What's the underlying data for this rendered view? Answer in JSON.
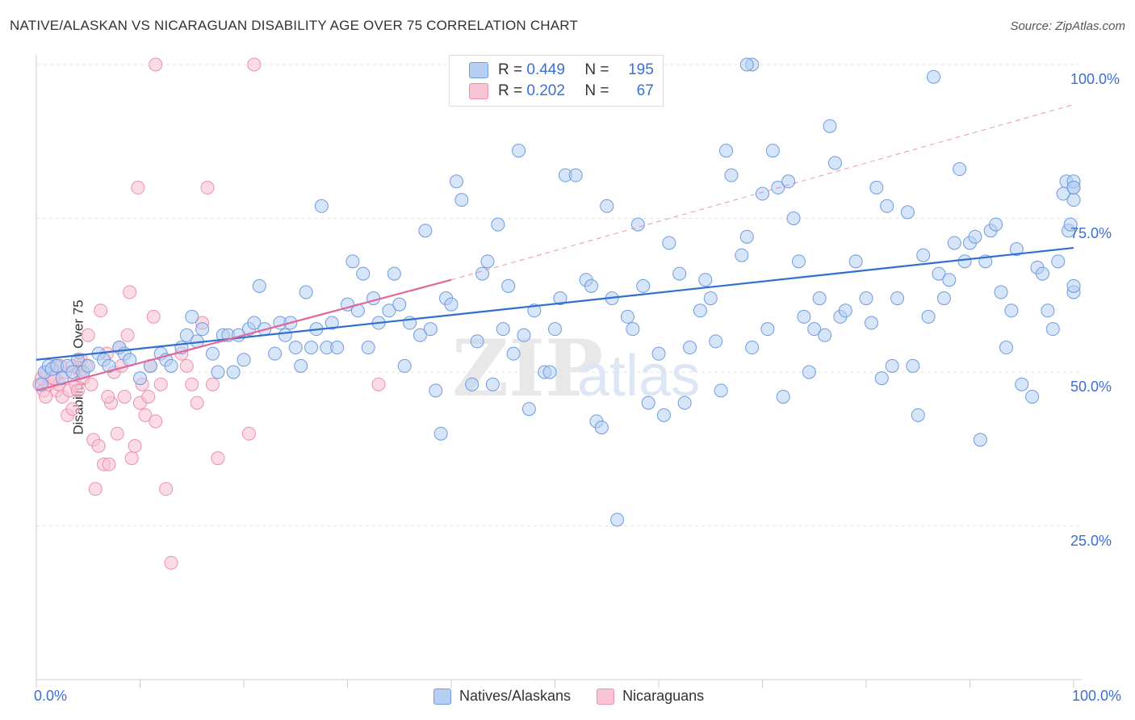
{
  "title": "NATIVE/ALASKAN VS NICARAGUAN DISABILITY AGE OVER 75 CORRELATION CHART",
  "source": "Source: ZipAtlas.com",
  "watermark_zip": "ZIP",
  "watermark_atlas": "atlas",
  "legend": {
    "r_label": "R =",
    "n_label": "N =",
    "series": [
      {
        "r": "0.449",
        "n": "195",
        "fill": "#b7cff2",
        "stroke": "#6f9be0"
      },
      {
        "r": "0.202",
        "n": "67",
        "fill": "#f9c4d4",
        "stroke": "#ee8fb0"
      }
    ]
  },
  "bottom_legend": [
    "Natives/Alaskans",
    "Nicaraguans"
  ],
  "chart_data": {
    "type": "scatter",
    "title": "NATIVE/ALASKAN VS NICARAGUAN DISABILITY AGE OVER 75 CORRELATION CHART",
    "xlabel": "",
    "ylabel": "Disability Age Over 75",
    "xlim": [
      0,
      100
    ],
    "ylim": [
      0,
      100
    ],
    "x_tick_labels": [
      "0.0%",
      "100.0%"
    ],
    "y_tick_labels": [
      "25.0%",
      "50.0%",
      "75.0%",
      "100.0%"
    ],
    "y_ticks": [
      25,
      50,
      75,
      100
    ],
    "grid": true,
    "legend_position": "top-center",
    "colors": {
      "natives": "#6f9be0",
      "natives_fill": "#b7cff2",
      "natives_line": "#2f6fd0",
      "nicaraguans": "#ee8fb0",
      "nicaraguans_fill": "#f9c4d4",
      "nicaraguans_line": "#e0689a"
    },
    "series": [
      {
        "name": "Natives/Alaskans",
        "trend": {
          "x": [
            0,
            100
          ],
          "y": [
            52.0,
            70.2
          ]
        },
        "points": [
          [
            0.5,
            48
          ],
          [
            0.8,
            50
          ],
          [
            1.2,
            51
          ],
          [
            1.5,
            50.5
          ],
          [
            2,
            51
          ],
          [
            2.5,
            49
          ],
          [
            3,
            51
          ],
          [
            3.5,
            50
          ],
          [
            4,
            52
          ],
          [
            4.5,
            50
          ],
          [
            5,
            51
          ],
          [
            6,
            53
          ],
          [
            6.5,
            52
          ],
          [
            7,
            51
          ],
          [
            8,
            54
          ],
          [
            8.5,
            53
          ],
          [
            9,
            52
          ],
          [
            10,
            49
          ],
          [
            11,
            51
          ],
          [
            12,
            53
          ],
          [
            12.5,
            52
          ],
          [
            13,
            51
          ],
          [
            14,
            54
          ],
          [
            14.5,
            56
          ],
          [
            15,
            59
          ],
          [
            15.5,
            55
          ],
          [
            16,
            57
          ],
          [
            17,
            53
          ],
          [
            17.5,
            50
          ],
          [
            18,
            56
          ],
          [
            18.5,
            56
          ],
          [
            19,
            50
          ],
          [
            19.5,
            56
          ],
          [
            20,
            52
          ],
          [
            20.5,
            57
          ],
          [
            21,
            58
          ],
          [
            21.5,
            64
          ],
          [
            22,
            57
          ],
          [
            23,
            53
          ],
          [
            23.5,
            58
          ],
          [
            24,
            56
          ],
          [
            24.5,
            58
          ],
          [
            25,
            54
          ],
          [
            25.5,
            51
          ],
          [
            26,
            63
          ],
          [
            26.5,
            54
          ],
          [
            27,
            57
          ],
          [
            27.5,
            77
          ],
          [
            28,
            54
          ],
          [
            28.5,
            58
          ],
          [
            29,
            54
          ],
          [
            30,
            61
          ],
          [
            30.5,
            68
          ],
          [
            31,
            60
          ],
          [
            31.5,
            66
          ],
          [
            32,
            54
          ],
          [
            32.5,
            62
          ],
          [
            33,
            58
          ],
          [
            34,
            60
          ],
          [
            34.5,
            66
          ],
          [
            35,
            61
          ],
          [
            35.5,
            51
          ],
          [
            36,
            58
          ],
          [
            37,
            56
          ],
          [
            37.5,
            73
          ],
          [
            38,
            57
          ],
          [
            38.5,
            47
          ],
          [
            39,
            40
          ],
          [
            39.5,
            62
          ],
          [
            40,
            61
          ],
          [
            40.5,
            81
          ],
          [
            41,
            78
          ],
          [
            42,
            48
          ],
          [
            42.5,
            55
          ],
          [
            43,
            66
          ],
          [
            43.5,
            68
          ],
          [
            44,
            48
          ],
          [
            44.5,
            74
          ],
          [
            45,
            57
          ],
          [
            45.5,
            64
          ],
          [
            46,
            53
          ],
          [
            46.5,
            86
          ],
          [
            47,
            56
          ],
          [
            47.5,
            44
          ],
          [
            48,
            60
          ],
          [
            49,
            50
          ],
          [
            49.5,
            50
          ],
          [
            50,
            57
          ],
          [
            50.5,
            62
          ],
          [
            51,
            82
          ],
          [
            52,
            82
          ],
          [
            53,
            65
          ],
          [
            53.5,
            64
          ],
          [
            54,
            42
          ],
          [
            54.5,
            41
          ],
          [
            55,
            77
          ],
          [
            55.5,
            62
          ],
          [
            56,
            26
          ],
          [
            57,
            59
          ],
          [
            57.5,
            57
          ],
          [
            58,
            74
          ],
          [
            58.5,
            64
          ],
          [
            59,
            45
          ],
          [
            60,
            53
          ],
          [
            60.5,
            43
          ],
          [
            61,
            71
          ],
          [
            62,
            66
          ],
          [
            62.5,
            45
          ],
          [
            63,
            54
          ],
          [
            64,
            60
          ],
          [
            64.5,
            65
          ],
          [
            65,
            62
          ],
          [
            65.5,
            55
          ],
          [
            66,
            47
          ],
          [
            66.5,
            86
          ],
          [
            67,
            82
          ],
          [
            68,
            69
          ],
          [
            68.5,
            72
          ],
          [
            69,
            54
          ],
          [
            70,
            79
          ],
          [
            70.5,
            57
          ],
          [
            71,
            86
          ],
          [
            71.5,
            80
          ],
          [
            72,
            46
          ],
          [
            72.5,
            81
          ],
          [
            73,
            75
          ],
          [
            73.5,
            68
          ],
          [
            74,
            59
          ],
          [
            74.5,
            50
          ],
          [
            75,
            57
          ],
          [
            75.5,
            62
          ],
          [
            76,
            56
          ],
          [
            76.5,
            90
          ],
          [
            77,
            84
          ],
          [
            77.5,
            59
          ],
          [
            78,
            60
          ],
          [
            79,
            68
          ],
          [
            80,
            62
          ],
          [
            80.5,
            58
          ],
          [
            81,
            80
          ],
          [
            81.5,
            49
          ],
          [
            82,
            77
          ],
          [
            82.5,
            51
          ],
          [
            83,
            62
          ],
          [
            84,
            76
          ],
          [
            84.5,
            51
          ],
          [
            85,
            43
          ],
          [
            85.5,
            69
          ],
          [
            86,
            59
          ],
          [
            86.5,
            98
          ],
          [
            87,
            66
          ],
          [
            87.5,
            62
          ],
          [
            88,
            65
          ],
          [
            88.5,
            71
          ],
          [
            89,
            83
          ],
          [
            89.5,
            68
          ],
          [
            90,
            71
          ],
          [
            90.5,
            72
          ],
          [
            91,
            39
          ],
          [
            91.5,
            68
          ],
          [
            92,
            73
          ],
          [
            92.5,
            74
          ],
          [
            93,
            63
          ],
          [
            93.5,
            54
          ],
          [
            94,
            60
          ],
          [
            94.5,
            70
          ],
          [
            95,
            48
          ],
          [
            96,
            46
          ],
          [
            96.5,
            67
          ],
          [
            97,
            66
          ],
          [
            97.5,
            60
          ],
          [
            98,
            57
          ],
          [
            98.5,
            68
          ],
          [
            99,
            79
          ],
          [
            99.3,
            81
          ],
          [
            99.5,
            73
          ],
          [
            99.7,
            74
          ],
          [
            100,
            80
          ],
          [
            100,
            81
          ],
          [
            100,
            78
          ],
          [
            100,
            63
          ],
          [
            100,
            64
          ],
          [
            100,
            80
          ],
          [
            69,
            100
          ],
          [
            68.5,
            100
          ]
        ]
      },
      {
        "name": "Nicaraguans",
        "trend": {
          "x": [
            0,
            40
          ],
          "y": [
            47.0,
            65.0
          ]
        },
        "trend_dashed": {
          "x": [
            40,
            100
          ],
          "y": [
            65.0,
            93.5
          ]
        },
        "points": [
          [
            0.3,
            48
          ],
          [
            0.5,
            49
          ],
          [
            0.7,
            47
          ],
          [
            1,
            50
          ],
          [
            1.2,
            48
          ],
          [
            1.5,
            49
          ],
          [
            1.8,
            51
          ],
          [
            2,
            47
          ],
          [
            2.2,
            48
          ],
          [
            2.5,
            46
          ],
          [
            2.8,
            50
          ],
          [
            3,
            43
          ],
          [
            3.2,
            47
          ],
          [
            3.5,
            51
          ],
          [
            3.8,
            48
          ],
          [
            4,
            47
          ],
          [
            4.3,
            52
          ],
          [
            4.5,
            49
          ],
          [
            4.8,
            51
          ],
          [
            5,
            56
          ],
          [
            5.3,
            48
          ],
          [
            5.5,
            39
          ],
          [
            5.7,
            31
          ],
          [
            6,
            38
          ],
          [
            6.2,
            60
          ],
          [
            6.5,
            35
          ],
          [
            6.8,
            53
          ],
          [
            7,
            35
          ],
          [
            7.2,
            45
          ],
          [
            7.5,
            50
          ],
          [
            7.8,
            40
          ],
          [
            8,
            54
          ],
          [
            8.2,
            51
          ],
          [
            8.5,
            46
          ],
          [
            8.8,
            56
          ],
          [
            9,
            63
          ],
          [
            9.2,
            36
          ],
          [
            9.5,
            38
          ],
          [
            9.8,
            80
          ],
          [
            10,
            45
          ],
          [
            10.2,
            48
          ],
          [
            10.5,
            43
          ],
          [
            10.8,
            46
          ],
          [
            11,
            51
          ],
          [
            11.3,
            59
          ],
          [
            11.5,
            42
          ],
          [
            12,
            48
          ],
          [
            12.5,
            31
          ],
          [
            13,
            19
          ],
          [
            14,
            53
          ],
          [
            14.5,
            51
          ],
          [
            15,
            48
          ],
          [
            15.5,
            45
          ],
          [
            16,
            58
          ],
          [
            16.5,
            80
          ],
          [
            17,
            48
          ],
          [
            17.5,
            36
          ],
          [
            11.5,
            100
          ],
          [
            21,
            100
          ],
          [
            20.5,
            40
          ],
          [
            33,
            48
          ],
          [
            3.5,
            44
          ],
          [
            4.2,
            50
          ],
          [
            2.3,
            51
          ],
          [
            1.7,
            49
          ],
          [
            0.9,
            46
          ],
          [
            6.9,
            46
          ]
        ]
      }
    ]
  }
}
